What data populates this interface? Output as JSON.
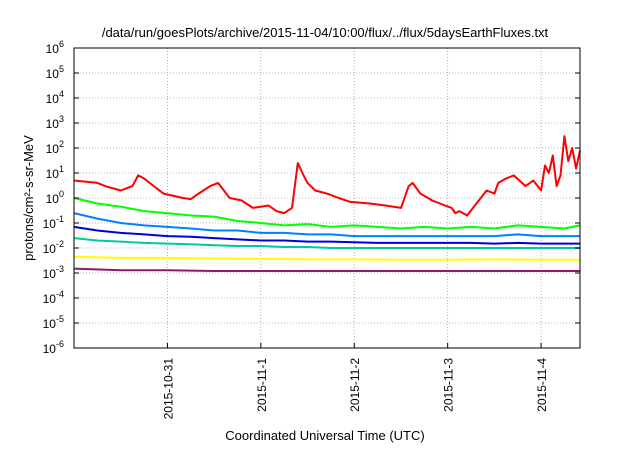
{
  "chart_data": {
    "type": "line",
    "title": "/data/run/goesPlots/archive/2015-11-04/10:00/flux/../flux/5daysEarthFluxes.txt",
    "xlabel": "Coordinated Universal Time (UTC)",
    "ylabel": "protons/cm²-s-sr-MeV",
    "y_scale": "log",
    "ylim": [
      1e-06,
      1000000.0
    ],
    "xlim": [
      "2015-10-30",
      "2015-11-04 10:00"
    ],
    "grid": true,
    "legend": "none",
    "x_ticks": [
      "2015-10-31",
      "2015-11-1",
      "2015-11-2",
      "2015-11-3",
      "2015-11-4"
    ],
    "y_ticks": [
      {
        "value": 1e-06,
        "base": "10",
        "exp": "-6"
      },
      {
        "value": 1e-05,
        "base": "10",
        "exp": "-5"
      },
      {
        "value": 0.0001,
        "base": "10",
        "exp": "-4"
      },
      {
        "value": 0.001,
        "base": "10",
        "exp": "-3"
      },
      {
        "value": 0.01,
        "base": "10",
        "exp": "-2"
      },
      {
        "value": 0.1,
        "base": "10",
        "exp": "-1"
      },
      {
        "value": 1,
        "base": "10",
        "exp": "0"
      },
      {
        "value": 10,
        "base": "10",
        "exp": "1"
      },
      {
        "value": 100,
        "base": "10",
        "exp": "2"
      },
      {
        "value": 1000,
        "base": "10",
        "exp": "3"
      },
      {
        "value": 10000,
        "base": "10",
        "exp": "4"
      },
      {
        "value": 100000,
        "base": "10",
        "exp": "5"
      },
      {
        "value": 1000000,
        "base": "10",
        "exp": "6"
      }
    ],
    "series": [
      {
        "color": "#ff0000",
        "x": [
          "2015-10-30 00:00",
          "2015-10-30 06:00",
          "2015-10-30 08:00",
          "2015-10-30 12:00",
          "2015-10-30 15:00",
          "2015-10-30 16:30",
          "2015-10-30 18:00",
          "2015-10-30 20:30",
          "2015-10-30 23:00",
          "2015-10-31 04:00",
          "2015-10-31 06:00",
          "2015-10-31 08:00",
          "2015-10-31 11:00",
          "2015-10-31 13:00",
          "2015-10-31 14:30",
          "2015-10-31 16:00",
          "2015-10-31 19:00",
          "2015-10-31 22:00",
          "2015-11-01 02:00",
          "2015-11-01 04:00",
          "2015-11-01 06:00",
          "2015-11-01 08:00",
          "2015-11-01 09:30",
          "2015-11-01 11:00",
          "2015-11-01 12:00",
          "2015-11-01 14:00",
          "2015-11-01 17:00",
          "2015-11-01 20:00",
          "2015-11-01 23:00",
          "2015-11-02 04:00",
          "2015-11-02 08:00",
          "2015-11-02 12:00",
          "2015-11-02 14:00",
          "2015-11-02 15:00",
          "2015-11-02 17:00",
          "2015-11-02 20:00",
          "2015-11-02 22:00",
          "2015-11-03 01:00",
          "2015-11-03 02:00",
          "2015-11-03 03:00",
          "2015-11-03 05:00",
          "2015-11-03 07:00",
          "2015-11-03 10:00",
          "2015-11-03 12:00",
          "2015-11-03 13:00",
          "2015-11-03 15:00",
          "2015-11-03 17:00",
          "2015-11-03 20:00",
          "2015-11-03 22:00",
          "2015-11-04 00:00",
          "2015-11-04 01:00",
          "2015-11-04 02:00",
          "2015-11-04 03:00",
          "2015-11-04 04:00",
          "2015-11-04 05:00",
          "2015-11-04 06:00",
          "2015-11-04 07:00",
          "2015-11-04 08:00",
          "2015-11-04 09:00",
          "2015-11-04 10:00"
        ],
        "y": [
          5,
          4,
          3,
          2,
          3,
          8,
          6,
          3,
          1.5,
          1,
          0.9,
          1.5,
          3,
          4,
          2,
          1,
          0.8,
          0.4,
          0.5,
          0.3,
          0.25,
          0.4,
          25,
          8,
          4,
          2,
          1.5,
          1,
          0.7,
          0.6,
          0.5,
          0.4,
          3,
          4,
          1.5,
          0.8,
          0.6,
          0.4,
          0.25,
          0.3,
          0.2,
          0.5,
          2,
          1.5,
          4,
          6,
          8,
          3,
          5,
          2,
          20,
          10,
          50,
          3,
          8,
          300,
          30,
          100,
          15,
          80
        ]
      },
      {
        "color": "#00ff00",
        "x": [
          "2015-10-30 00:00",
          "2015-10-30 06:00",
          "2015-10-30 12:00",
          "2015-10-30 18:00",
          "2015-10-31 00:00",
          "2015-10-31 06:00",
          "2015-10-31 12:00",
          "2015-10-31 18:00",
          "2015-11-01 00:00",
          "2015-11-01 06:00",
          "2015-11-01 12:00",
          "2015-11-01 18:00",
          "2015-11-02 00:00",
          "2015-11-02 06:00",
          "2015-11-02 12:00",
          "2015-11-02 18:00",
          "2015-11-03 00:00",
          "2015-11-03 06:00",
          "2015-11-03 12:00",
          "2015-11-03 18:00",
          "2015-11-04 00:00",
          "2015-11-04 06:00",
          "2015-11-04 10:00"
        ],
        "y": [
          1.0,
          0.6,
          0.45,
          0.3,
          0.25,
          0.2,
          0.18,
          0.12,
          0.1,
          0.08,
          0.09,
          0.07,
          0.08,
          0.07,
          0.06,
          0.07,
          0.06,
          0.07,
          0.06,
          0.08,
          0.07,
          0.06,
          0.08
        ]
      },
      {
        "color": "#0080ff",
        "x": [
          "2015-10-30 00:00",
          "2015-10-30 06:00",
          "2015-10-30 12:00",
          "2015-10-30 18:00",
          "2015-10-31 00:00",
          "2015-10-31 06:00",
          "2015-10-31 12:00",
          "2015-10-31 18:00",
          "2015-11-01 00:00",
          "2015-11-01 06:00",
          "2015-11-01 12:00",
          "2015-11-01 18:00",
          "2015-11-02 00:00",
          "2015-11-02 06:00",
          "2015-11-02 12:00",
          "2015-11-02 18:00",
          "2015-11-03 00:00",
          "2015-11-03 06:00",
          "2015-11-03 12:00",
          "2015-11-03 18:00",
          "2015-11-04 00:00",
          "2015-11-04 06:00",
          "2015-11-04 10:00"
        ],
        "y": [
          0.25,
          0.15,
          0.1,
          0.08,
          0.07,
          0.06,
          0.05,
          0.05,
          0.04,
          0.04,
          0.035,
          0.035,
          0.03,
          0.03,
          0.03,
          0.03,
          0.03,
          0.03,
          0.03,
          0.035,
          0.03,
          0.03,
          0.03
        ]
      },
      {
        "color": "#0000dd",
        "x": [
          "2015-10-30 00:00",
          "2015-10-30 06:00",
          "2015-10-30 12:00",
          "2015-10-30 18:00",
          "2015-10-31 00:00",
          "2015-10-31 06:00",
          "2015-10-31 12:00",
          "2015-10-31 18:00",
          "2015-11-01 00:00",
          "2015-11-01 06:00",
          "2015-11-01 12:00",
          "2015-11-01 18:00",
          "2015-11-02 00:00",
          "2015-11-02 06:00",
          "2015-11-02 12:00",
          "2015-11-02 18:00",
          "2015-11-03 00:00",
          "2015-11-03 06:00",
          "2015-11-03 12:00",
          "2015-11-03 18:00",
          "2015-11-04 00:00",
          "2015-11-04 06:00",
          "2015-11-04 10:00"
        ],
        "y": [
          0.07,
          0.05,
          0.04,
          0.035,
          0.03,
          0.028,
          0.025,
          0.022,
          0.02,
          0.02,
          0.018,
          0.018,
          0.017,
          0.016,
          0.016,
          0.016,
          0.016,
          0.016,
          0.015,
          0.016,
          0.015,
          0.015,
          0.015
        ]
      },
      {
        "color": "#00c8a0",
        "x": [
          "2015-10-30 00:00",
          "2015-10-30 06:00",
          "2015-10-30 12:00",
          "2015-10-30 18:00",
          "2015-10-31 00:00",
          "2015-10-31 06:00",
          "2015-10-31 12:00",
          "2015-10-31 18:00",
          "2015-11-01 00:00",
          "2015-11-01 06:00",
          "2015-11-01 12:00",
          "2015-11-01 18:00",
          "2015-11-02 00:00",
          "2015-11-02 06:00",
          "2015-11-02 12:00",
          "2015-11-02 18:00",
          "2015-11-03 00:00",
          "2015-11-03 06:00",
          "2015-11-03 12:00",
          "2015-11-03 18:00",
          "2015-11-04 00:00",
          "2015-11-04 06:00",
          "2015-11-04 10:00"
        ],
        "y": [
          0.025,
          0.02,
          0.018,
          0.016,
          0.015,
          0.014,
          0.013,
          0.012,
          0.012,
          0.011,
          0.011,
          0.01,
          0.01,
          0.01,
          0.01,
          0.01,
          0.01,
          0.01,
          0.01,
          0.01,
          0.01,
          0.01,
          0.01
        ]
      },
      {
        "color": "#ffff00",
        "x": [
          "2015-10-30 00:00",
          "2015-10-30 12:00",
          "2015-10-31 00:00",
          "2015-10-31 12:00",
          "2015-11-01 00:00",
          "2015-11-01 12:00",
          "2015-11-02 00:00",
          "2015-11-02 12:00",
          "2015-11-03 00:00",
          "2015-11-03 12:00",
          "2015-11-04 00:00",
          "2015-11-04 10:00"
        ],
        "y": [
          0.0045,
          0.004,
          0.004,
          0.0038,
          0.0037,
          0.0035,
          0.0035,
          0.0034,
          0.0034,
          0.0035,
          0.0034,
          0.0034
        ]
      },
      {
        "color": "#8b1a6e",
        "x": [
          "2015-10-30 00:00",
          "2015-10-30 12:00",
          "2015-10-31 00:00",
          "2015-10-31 12:00",
          "2015-11-01 00:00",
          "2015-11-01 12:00",
          "2015-11-02 00:00",
          "2015-11-02 12:00",
          "2015-11-03 00:00",
          "2015-11-03 12:00",
          "2015-11-04 00:00",
          "2015-11-04 10:00"
        ],
        "y": [
          0.0015,
          0.0013,
          0.0013,
          0.0012,
          0.0012,
          0.0012,
          0.0012,
          0.0012,
          0.0012,
          0.0012,
          0.0012,
          0.0012
        ]
      }
    ]
  }
}
